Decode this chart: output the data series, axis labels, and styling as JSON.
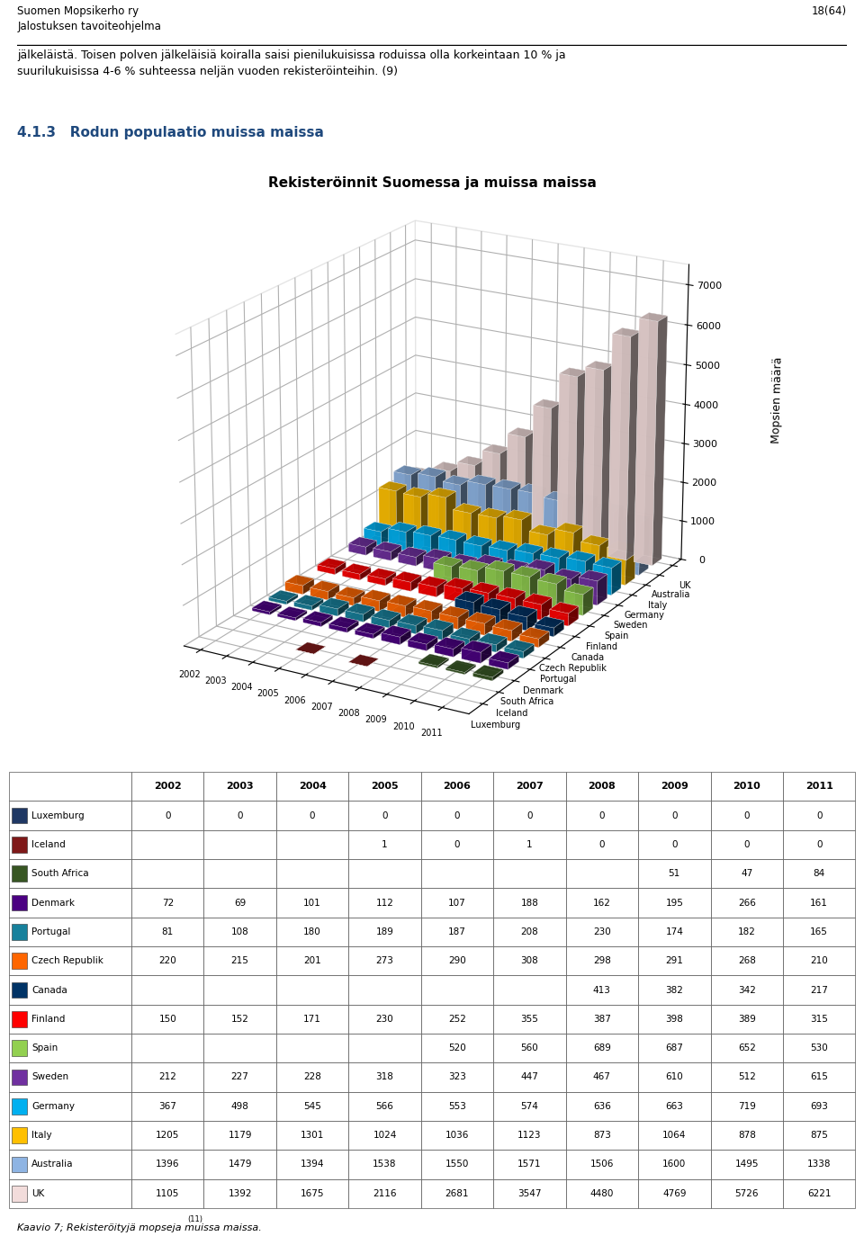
{
  "title": "Rekisteröinnit Suomessa ja muissa maissa",
  "ylabel": "Mopsien määrä",
  "header_left": "Suomen Mopsikerho ry\nJalostuksen tavoiteohjelma",
  "header_right": "18(64)",
  "body_text": "jälkeläistä. Toisen polven jälkeläisiä koiralla saisi pienilukuisissa roduissa olla korkeintaan 10 % ja\nsuurilukuisissa 4-6 % suhteessa neljän vuoden rekisteröinteihin. (9)",
  "section_title": "4.1.3   Rodun populaatio muissa maissa",
  "caption": "Kaavio 7; Rekisteröityjä mopseja muissa maissa.",
  "caption_sup": "(11)",
  "years": [
    2002,
    2003,
    2004,
    2005,
    2006,
    2007,
    2008,
    2009,
    2010,
    2011
  ],
  "countries": [
    "UK",
    "Australia",
    "Italy",
    "Germany",
    "Sweden",
    "Spain",
    "Finland",
    "Canada",
    "Czech Republik",
    "Portugal",
    "Denmark",
    "South Africa",
    "Iceland",
    "Luxemburg"
  ],
  "colors": [
    "#F2DCDB",
    "#8EB4E3",
    "#FFC000",
    "#00B0F0",
    "#7030A0",
    "#92D050",
    "#FF0000",
    "#003366",
    "#FF6600",
    "#17819C",
    "#4B0082",
    "#375623",
    "#7F1919",
    "#1F3864"
  ],
  "data": {
    "UK": [
      1105,
      1392,
      1675,
      2116,
      2681,
      3547,
      4480,
      4769,
      5726,
      6221
    ],
    "Australia": [
      1396,
      1479,
      1394,
      1538,
      1550,
      1571,
      1506,
      1600,
      1495,
      1338
    ],
    "Italy": [
      1205,
      1179,
      1301,
      1024,
      1036,
      1123,
      873,
      1064,
      878,
      875
    ],
    "Germany": [
      367,
      498,
      545,
      566,
      553,
      574,
      636,
      663,
      719,
      693
    ],
    "Sweden": [
      212,
      227,
      228,
      318,
      323,
      447,
      467,
      610,
      512,
      615
    ],
    "Spain": [
      0,
      0,
      0,
      0,
      520,
      560,
      689,
      687,
      652,
      530
    ],
    "Finland": [
      150,
      152,
      171,
      230,
      252,
      355,
      387,
      398,
      389,
      315
    ],
    "Canada": [
      0,
      0,
      0,
      0,
      0,
      0,
      413,
      382,
      342,
      217
    ],
    "Czech Republik": [
      220,
      215,
      201,
      273,
      290,
      308,
      298,
      291,
      268,
      210
    ],
    "Portugal": [
      81,
      108,
      180,
      189,
      187,
      208,
      230,
      174,
      182,
      165
    ],
    "Denmark": [
      72,
      69,
      101,
      112,
      107,
      188,
      162,
      195,
      266,
      161
    ],
    "South Africa": [
      0,
      0,
      0,
      0,
      0,
      0,
      0,
      51,
      47,
      84
    ],
    "Iceland": [
      0,
      0,
      0,
      1,
      0,
      1,
      0,
      0,
      0,
      0
    ],
    "Luxemburg": [
      0,
      0,
      0,
      0,
      0,
      0,
      0,
      0,
      0,
      0
    ]
  },
  "table_countries_order": [
    "Luxemburg",
    "Iceland",
    "South Africa",
    "Denmark",
    "Portugal",
    "Czech Republik",
    "Canada",
    "Finland",
    "Spain",
    "Sweden",
    "Germany",
    "Italy",
    "Australia",
    "UK"
  ],
  "table_colors": {
    "Luxemburg": "#1F3864",
    "Iceland": "#7F1919",
    "South Africa": "#375623",
    "Denmark": "#4B0082",
    "Portugal": "#17819C",
    "Czech Republik": "#FF6600",
    "Canada": "#003366",
    "Finland": "#FF0000",
    "Spain": "#92D050",
    "Sweden": "#7030A0",
    "Germany": "#00B0F0",
    "Italy": "#FFC000",
    "Australia": "#8EB4E3",
    "UK": "#F2DCDB"
  },
  "table_data": {
    "Luxemburg": [
      0,
      0,
      0,
      0,
      0,
      0,
      0,
      0,
      0,
      0
    ],
    "Iceland": [
      null,
      null,
      null,
      1,
      0,
      1,
      0,
      0,
      0,
      0
    ],
    "South Africa": [
      null,
      null,
      null,
      null,
      null,
      null,
      null,
      51,
      47,
      84
    ],
    "Denmark": [
      72,
      69,
      101,
      112,
      107,
      188,
      162,
      195,
      266,
      161
    ],
    "Portugal": [
      81,
      108,
      180,
      189,
      187,
      208,
      230,
      174,
      182,
      165
    ],
    "Czech Republik": [
      220,
      215,
      201,
      273,
      290,
      308,
      298,
      291,
      268,
      210
    ],
    "Canada": [
      null,
      null,
      null,
      null,
      null,
      null,
      413,
      382,
      342,
      217
    ],
    "Finland": [
      150,
      152,
      171,
      230,
      252,
      355,
      387,
      398,
      389,
      315
    ],
    "Spain": [
      null,
      null,
      null,
      null,
      520,
      560,
      689,
      687,
      652,
      530
    ],
    "Sweden": [
      212,
      227,
      228,
      318,
      323,
      447,
      467,
      610,
      512,
      615
    ],
    "Germany": [
      367,
      498,
      545,
      566,
      553,
      574,
      636,
      663,
      719,
      693
    ],
    "Italy": [
      1205,
      1179,
      1301,
      1024,
      1036,
      1123,
      873,
      1064,
      878,
      875
    ],
    "Australia": [
      1396,
      1479,
      1394,
      1538,
      1550,
      1571,
      1506,
      1600,
      1495,
      1338
    ],
    "UK": [
      1105,
      1392,
      1675,
      2116,
      2681,
      3547,
      4480,
      4769,
      5726,
      6221
    ]
  },
  "ylim": [
    0,
    7500
  ],
  "yticks": [
    0,
    1000,
    2000,
    3000,
    4000,
    5000,
    6000,
    7000
  ]
}
